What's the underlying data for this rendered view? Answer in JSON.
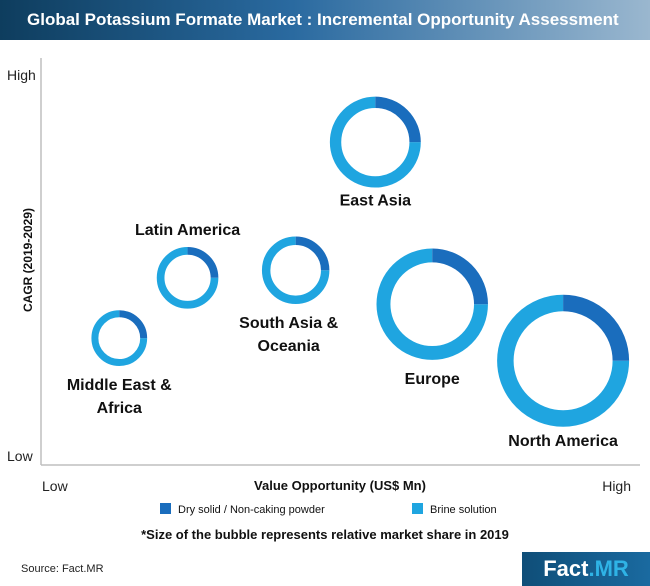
{
  "title": "Global Potassium Formate Market : Incremental Opportunity Assessment",
  "chart_data": {
    "type": "bubble",
    "xlabel": "Value Opportunity (US$ Mn)",
    "ylabel": "CAGR (2019-2029)",
    "x_min_label": "Low",
    "x_max_label": "High",
    "y_min_label": "Low",
    "y_max_label": "High",
    "legend": [
      {
        "name": "Dry solid / Non-caking powder",
        "color": "#1a6dbd"
      },
      {
        "name": "Brine solution",
        "color": "#1fa5e0"
      }
    ],
    "points": [
      {
        "name": "Middle East & Africa",
        "label_lines": [
          "Middle East &",
          "Africa"
        ],
        "x": 0.12,
        "y": 0.31,
        "size": 0.19,
        "dry_share": 0.25
      },
      {
        "name": "Latin America",
        "label_lines": [
          "Latin America"
        ],
        "x": 0.24,
        "y": 0.47,
        "size": 0.21,
        "dry_share": 0.25
      },
      {
        "name": "South Asia & Oceania",
        "label_lines": [
          "South Asia &",
          "Oceania"
        ],
        "x": 0.43,
        "y": 0.49,
        "size": 0.23,
        "dry_share": 0.25
      },
      {
        "name": "East Asia",
        "label_lines": [
          "East Asia"
        ],
        "x": 0.57,
        "y": 0.83,
        "size": 0.31,
        "dry_share": 0.25
      },
      {
        "name": "Europe",
        "label_lines": [
          "Europe"
        ],
        "x": 0.67,
        "y": 0.4,
        "size": 0.38,
        "dry_share": 0.25
      },
      {
        "name": "North America",
        "label_lines": [
          "North America"
        ],
        "x": 0.9,
        "y": 0.25,
        "size": 0.45,
        "dry_share": 0.25
      }
    ]
  },
  "footnote": "*Size of the bubble represents relative market share in 2019",
  "source": "Source: Fact.MR",
  "logo": {
    "part1": "Fact",
    "part2": ".MR"
  }
}
